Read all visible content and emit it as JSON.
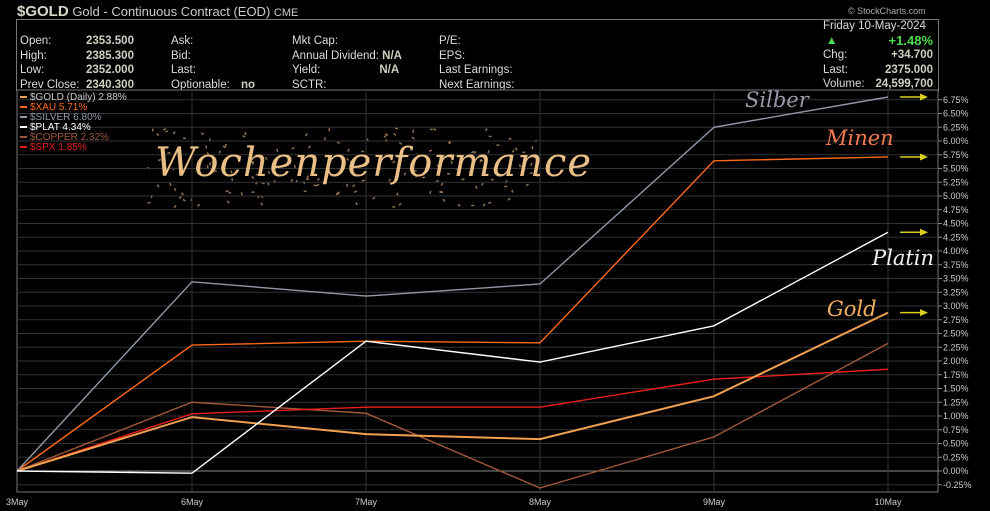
{
  "header": {
    "symbol": "$GOLD",
    "name": "Gold - Continuous Contract (EOD)",
    "exchange": "CME",
    "watermark": "© StockCharts.com"
  },
  "quote": {
    "open_label": "Open:",
    "open": "2353.500",
    "high_label": "High:",
    "high": "2385.300",
    "low_label": "Low:",
    "low": "2352.000",
    "prev_label": "Prev Close:",
    "prev": "2340.300",
    "ask_label": "Ask:",
    "bid_label": "Bid:",
    "last_label_mid": "Last:",
    "optionable_label": "Optionable:",
    "optionable": "no",
    "mktcap_label": "Mkt Cap:",
    "div_label": "Annual Dividend:",
    "div": "N/A",
    "yield_label": "Yield:",
    "yield": "N/A",
    "sctr_label": "SCTR:",
    "pe_label": "P/E:",
    "eps_label": "EPS:",
    "lastearn_label": "Last Earnings:",
    "nextearn_label": "Next Earnings:",
    "date": "Friday  10-May-2024",
    "pct": "+1.48%",
    "chg_label": "Chg:",
    "chg": "+34.700",
    "last_label": "Last:",
    "last": "2375.000",
    "vol_label": "Volume:",
    "volume": "24,599,700",
    "up_color": "#4ddc4d"
  },
  "annotations": {
    "title": "Wochenperformance",
    "silber": "Silber",
    "minen": "Minen",
    "platin": "Platin",
    "gold": "Gold"
  },
  "chart_data": {
    "type": "line",
    "categories": [
      "3May",
      "6May",
      "7May",
      "8May",
      "9May",
      "10May"
    ],
    "ylim": [
      -0.25,
      6.75
    ],
    "yticks": [
      "-0.25%",
      "0.00%",
      "0.25%",
      "0.50%",
      "0.75%",
      "1.00%",
      "1.25%",
      "1.50%",
      "1.75%",
      "2.00%",
      "2.25%",
      "2.50%",
      "2.75%",
      "3.00%",
      "3.25%",
      "3.50%",
      "3.75%",
      "4.00%",
      "4.25%",
      "4.50%",
      "4.75%",
      "5.00%",
      "5.25%",
      "5.50%",
      "5.75%",
      "6.00%",
      "6.25%",
      "6.50%",
      "6.75%"
    ],
    "grid": true,
    "legend_position": "top-left",
    "series": [
      {
        "name": "$GOLD (Daily) 2.88%",
        "color": "#f0a050",
        "values": [
          0,
          0.98,
          0.67,
          0.58,
          1.36,
          2.88
        ],
        "arrow": true
      },
      {
        "name": "$XAU 5.71%",
        "color": "#ff6a1a",
        "values": [
          0,
          2.29,
          2.36,
          2.33,
          5.64,
          5.71
        ],
        "arrow": true
      },
      {
        "name": "$SILVER 6.80%",
        "color": "#9098a8",
        "values": [
          0,
          3.44,
          3.18,
          3.4,
          6.25,
          6.8
        ],
        "arrow": true
      },
      {
        "name": "$PLAT 4.34%",
        "color": "#ffffff",
        "values": [
          0,
          -0.04,
          2.36,
          1.98,
          2.64,
          4.34
        ],
        "arrow": true
      },
      {
        "name": "$COPPER 2.32%",
        "color": "#a0583a",
        "values": [
          0,
          1.25,
          1.05,
          -0.31,
          0.62,
          2.32
        ],
        "arrow": false
      },
      {
        "name": "$SPX 1.85%",
        "color": "#e8201c",
        "values": [
          0,
          1.04,
          1.16,
          1.16,
          1.67,
          1.85
        ],
        "arrow": false
      }
    ],
    "arrow_color": "#d8d020"
  }
}
